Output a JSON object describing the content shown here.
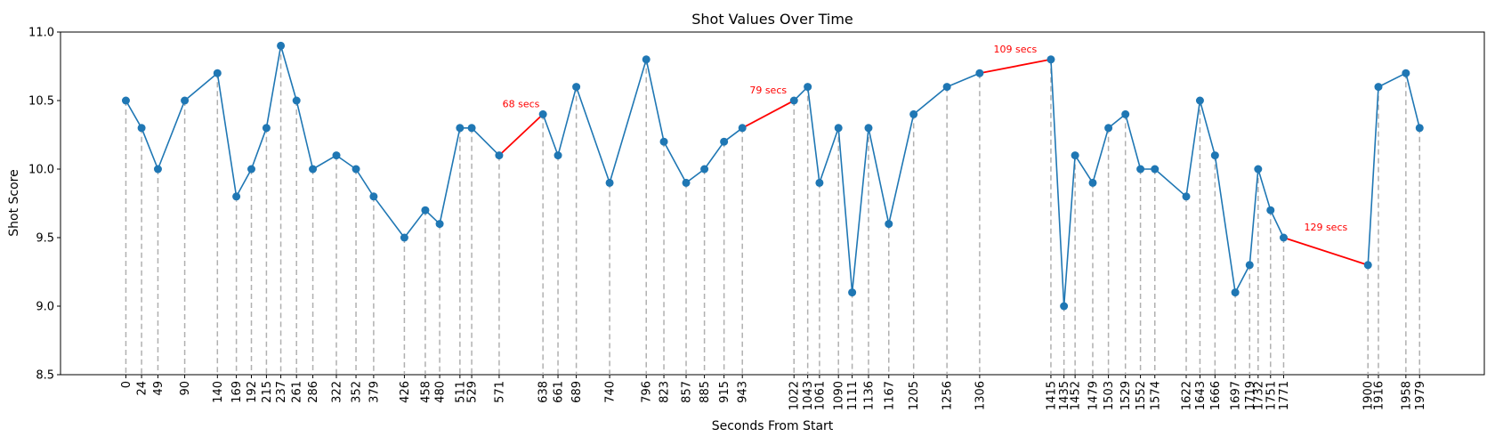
{
  "chart_data": {
    "type": "line",
    "title": "Shot Values Over Time",
    "xlabel": "Seconds From Start",
    "ylabel": "Shot Score",
    "xlim": [
      -100,
      2078
    ],
    "ylim": [
      8.5,
      11.0
    ],
    "yticks": [
      8.5,
      9.0,
      9.5,
      10.0,
      10.5,
      11.0
    ],
    "grid": false,
    "series": [
      {
        "x": [
          0,
          24,
          49,
          90,
          140,
          169,
          192,
          215,
          237,
          261,
          286,
          322,
          352,
          379,
          426,
          458,
          480,
          511,
          529,
          571,
          638,
          661,
          689,
          740,
          796,
          823,
          857,
          885,
          915,
          943,
          1022,
          1043,
          1061,
          1090,
          1111,
          1136,
          1167,
          1205,
          1256,
          1306,
          1415,
          1435,
          1452,
          1479,
          1503,
          1529,
          1552,
          1574,
          1622,
          1643,
          1666,
          1697,
          1719,
          1732,
          1751,
          1771,
          1900,
          1916,
          1958,
          1979
        ],
        "y": [
          10.5,
          10.3,
          10.0,
          10.5,
          10.7,
          9.8,
          10.0,
          10.3,
          10.9,
          10.5,
          10.0,
          10.1,
          10.0,
          9.8,
          9.5,
          9.7,
          9.6,
          10.3,
          10.3,
          10.1,
          10.4,
          10.1,
          10.6,
          9.9,
          10.8,
          10.2,
          9.9,
          10.0,
          10.2,
          10.3,
          10.5,
          10.6,
          9.9,
          10.3,
          9.1,
          10.3,
          9.6,
          10.4,
          10.6,
          10.7,
          10.8,
          9.0,
          10.1,
          9.9,
          10.3,
          10.4,
          10.0,
          10.0,
          9.8,
          10.5,
          10.1,
          9.1,
          9.3,
          10.0,
          9.7,
          9.5,
          9.3,
          10.6,
          10.7,
          10.3
        ],
        "color": "#1f77b4"
      }
    ],
    "gaps": [
      {
        "from_index": 19,
        "to_index": 20,
        "label": "68 secs"
      },
      {
        "from_index": 29,
        "to_index": 30,
        "label": "79 secs"
      },
      {
        "from_index": 39,
        "to_index": 40,
        "label": "109 secs"
      },
      {
        "from_index": 55,
        "to_index": 56,
        "label": "129 secs"
      }
    ],
    "colors": {
      "line": "#1f77b4",
      "gap": "#ff0000",
      "drop_line": "#b0b0b0"
    }
  }
}
